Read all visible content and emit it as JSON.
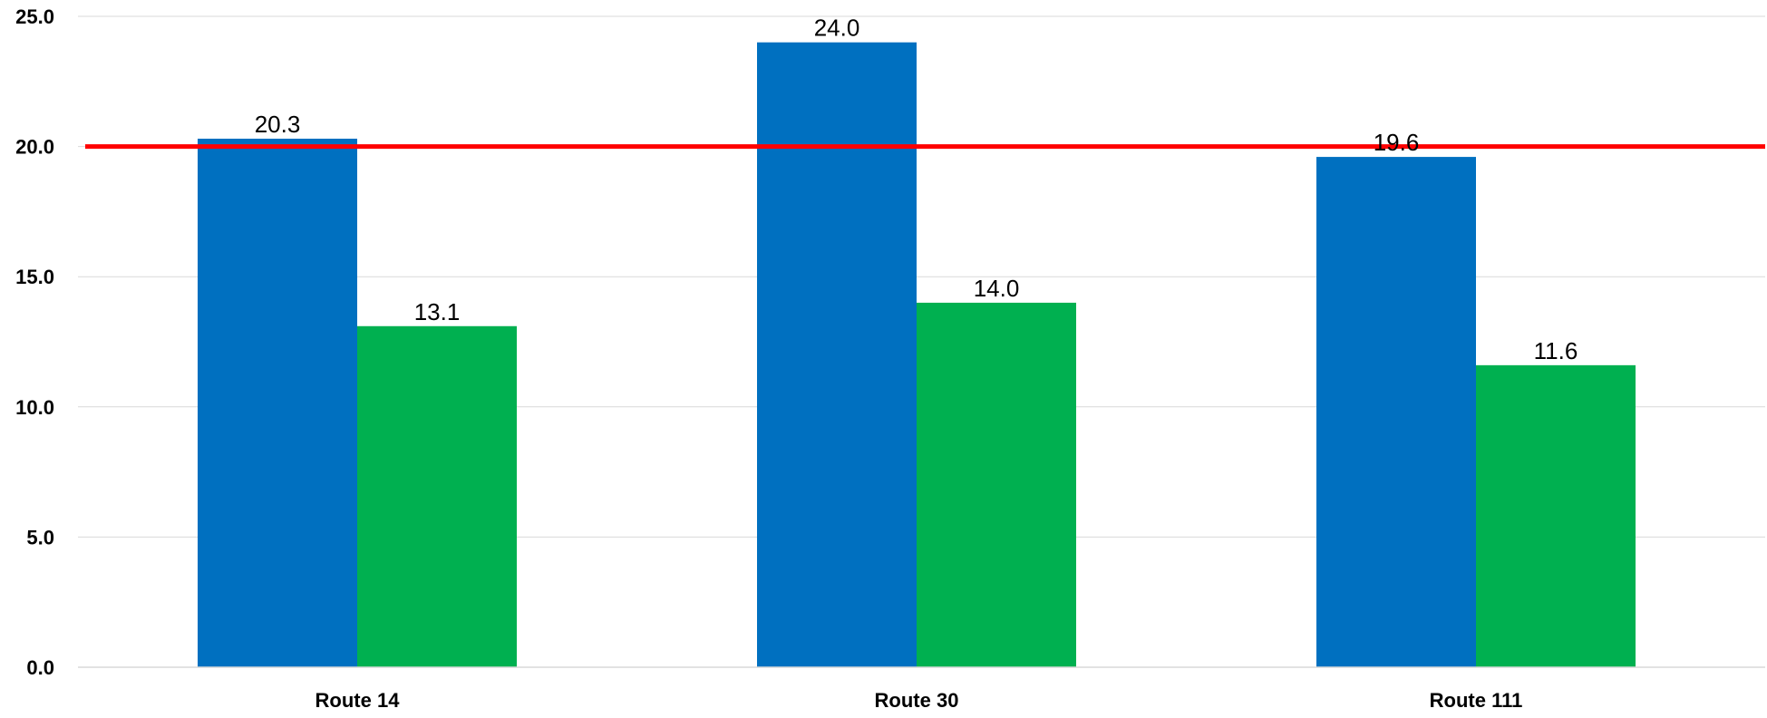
{
  "chart_data": {
    "type": "bar",
    "title": "",
    "xlabel": "",
    "ylabel": "",
    "categories": [
      "Route 14",
      "Route 30",
      "Route 111"
    ],
    "series": [
      {
        "values": [
          20.3,
          24.0,
          19.6
        ],
        "color": "#0070C0"
      },
      {
        "values": [
          13.1,
          14.0,
          11.6
        ],
        "color": "#00B050"
      }
    ],
    "data_labels": [
      [
        "20.3",
        "24.0",
        "19.6"
      ],
      [
        "13.1",
        "14.0",
        "11.6"
      ]
    ],
    "reference_line": {
      "value": 20.0,
      "color": "#FF0000"
    },
    "ylim": [
      0,
      25
    ],
    "yticks": [
      0,
      5,
      10,
      15,
      20,
      25
    ],
    "ytick_labels": [
      "0.0",
      "5.0",
      "10.0",
      "15.0",
      "20.0",
      "25.0"
    ],
    "grid": true,
    "grid_color": "#D9D9D9",
    "legend": "none"
  }
}
